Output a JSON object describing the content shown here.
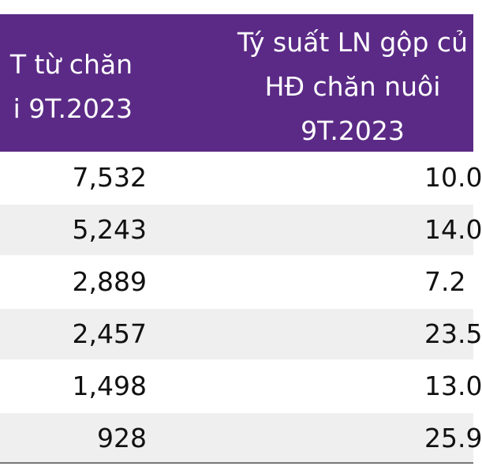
{
  "header": {
    "col1_lines": [
      "T từ chăn",
      "i 9T.2023"
    ],
    "col2_lines": [
      "Tý suất LN gộp củ",
      "HĐ chăn nuôi",
      "9T.2023"
    ]
  },
  "rows": [
    {
      "value1": "7,532",
      "value2": "10.0"
    },
    {
      "value1": "5,243",
      "value2": "14.0"
    },
    {
      "value1": "2,889",
      "value2": "7.2"
    },
    {
      "value1": "2,457",
      "value2": "23.5"
    },
    {
      "value1": "1,498",
      "value2": "13.0"
    },
    {
      "value1": "928",
      "value2": "25.9"
    }
  ],
  "colors": {
    "header_bg": "#5b2a86",
    "header_text": "#ffffff",
    "alt_row_bg": "#efefef"
  }
}
